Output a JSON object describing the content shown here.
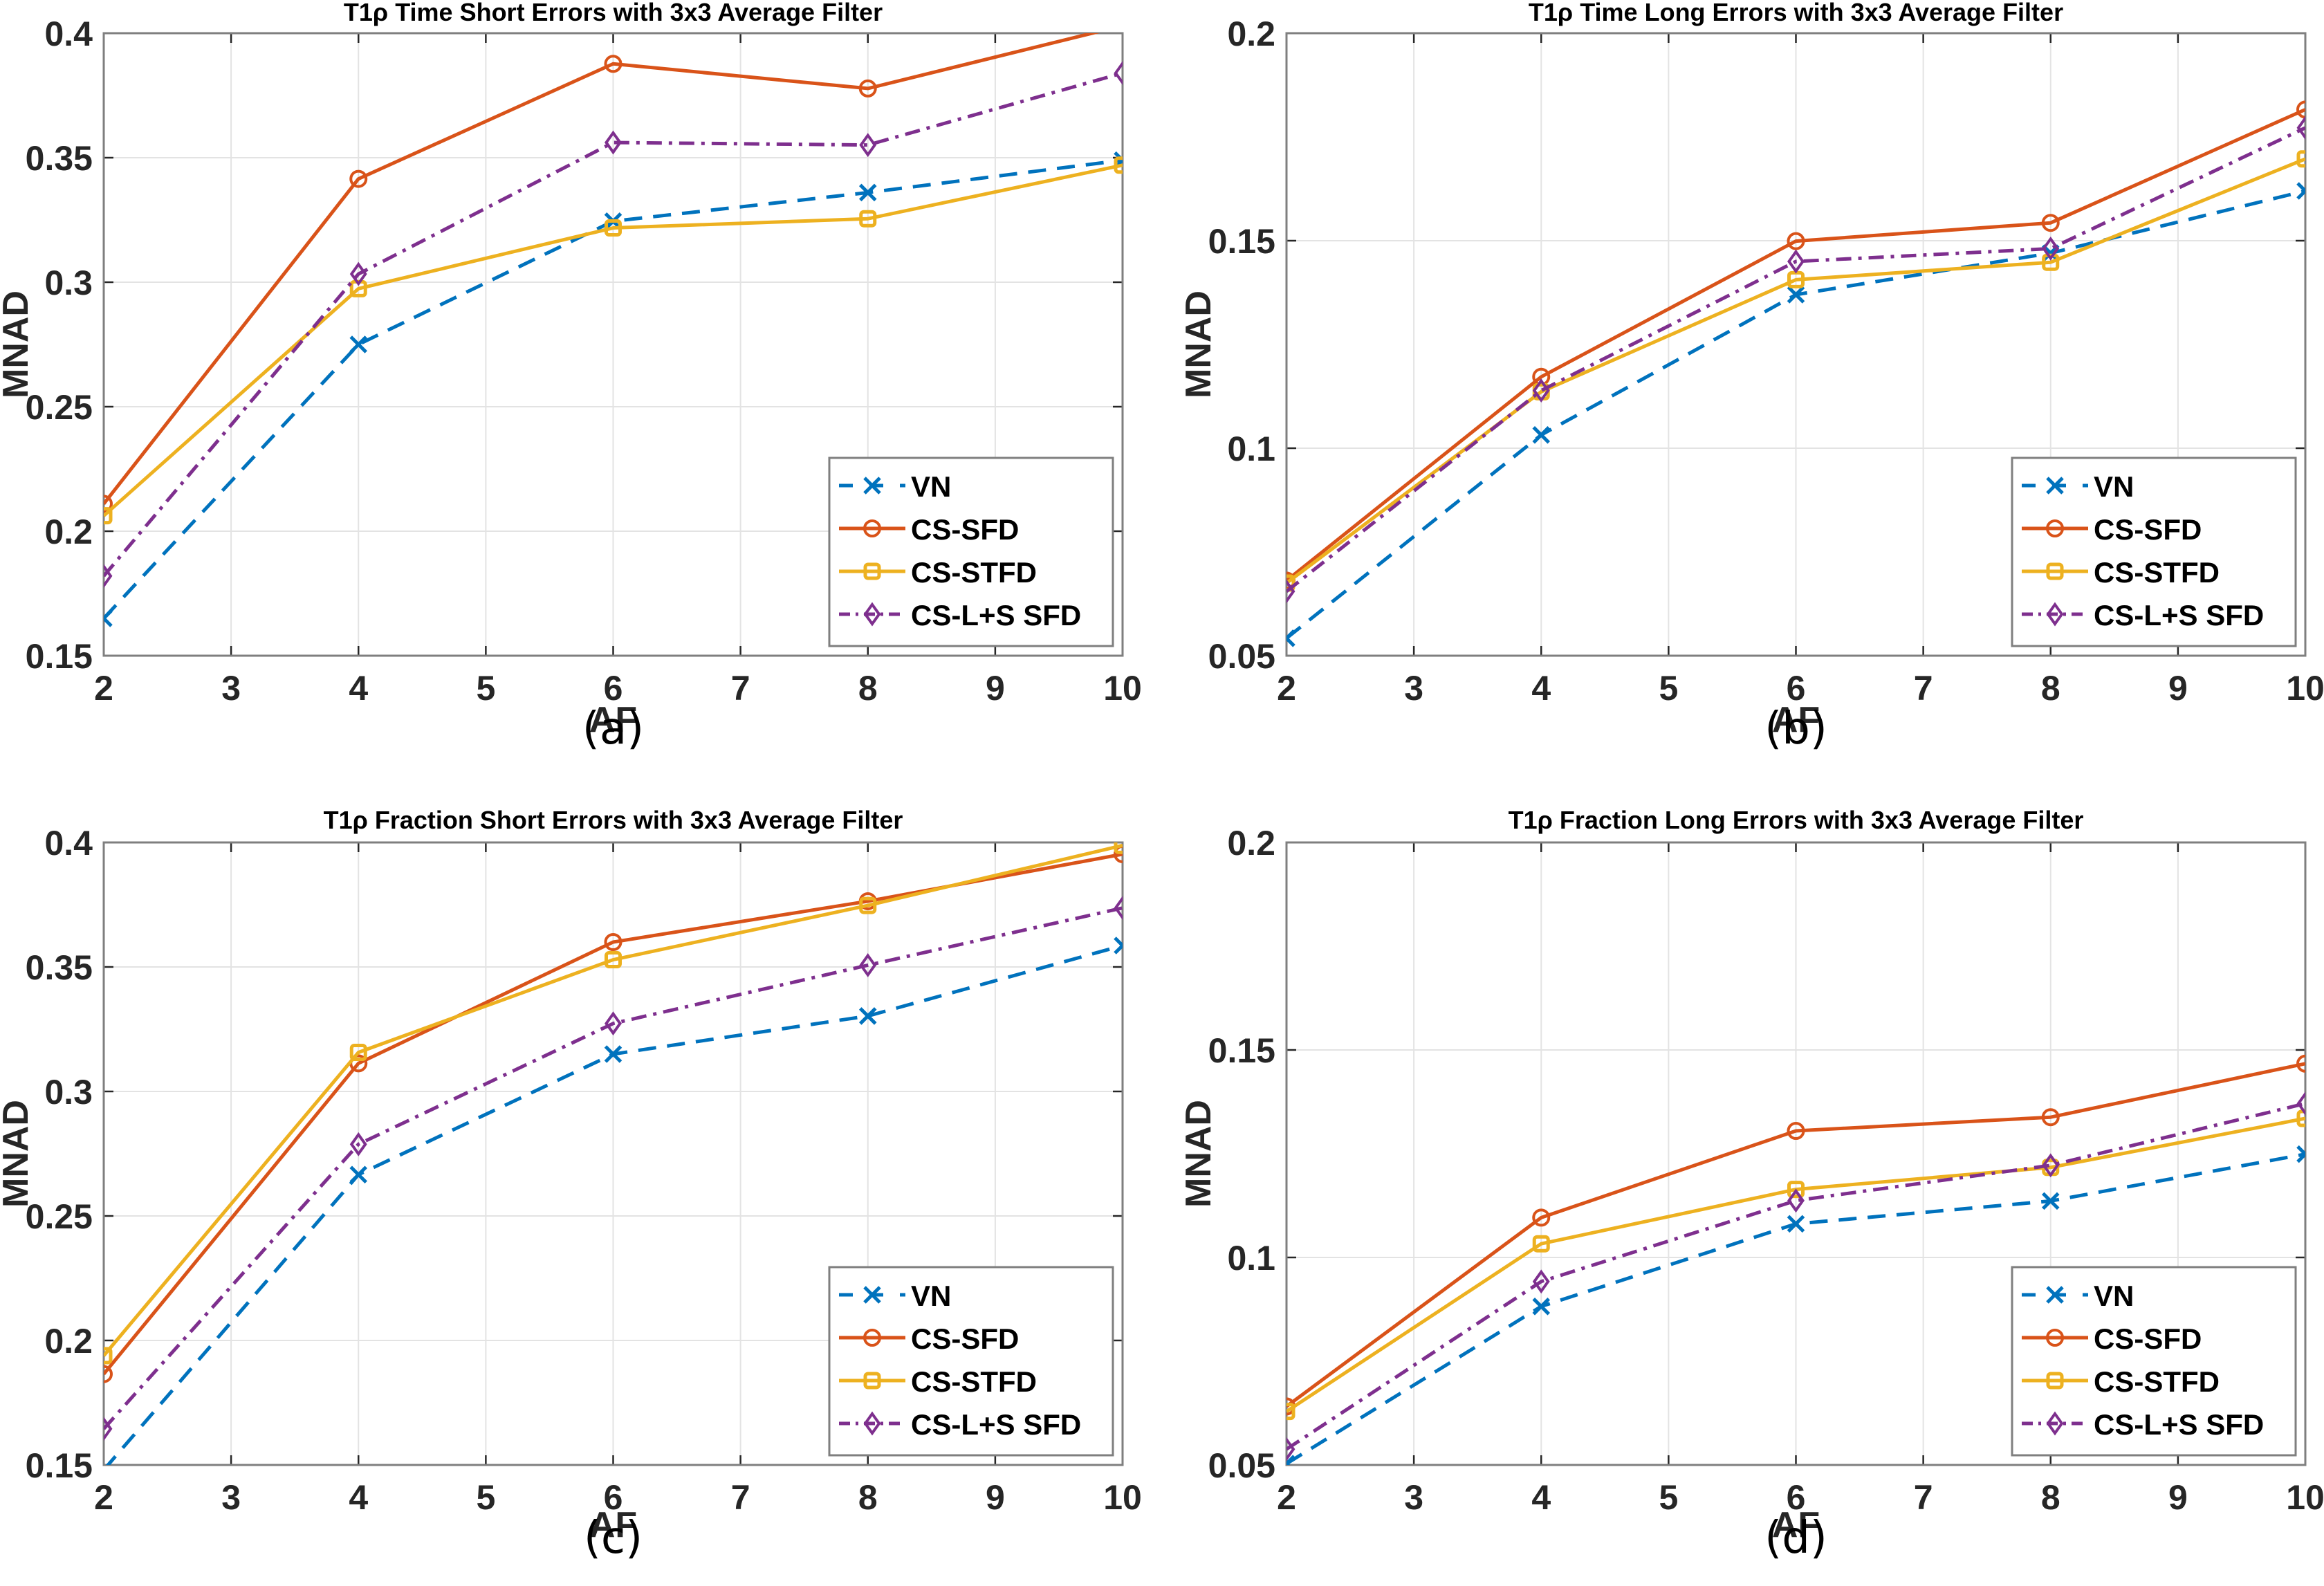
{
  "figure": {
    "panel_labels": [
      "(a)",
      "(b)",
      "(c)",
      "(d)"
    ]
  },
  "legend": [
    {
      "name": "VN",
      "color": "#0072BD",
      "dash": "dashed",
      "marker": "x"
    },
    {
      "name": "CS-SFD",
      "color": "#D95319",
      "dash": "solid",
      "marker": "circle"
    },
    {
      "name": "CS-STFD",
      "color": "#EDB120",
      "dash": "solid",
      "marker": "square"
    },
    {
      "name": "CS-L+S SFD",
      "color": "#7E2F8E",
      "dash": "dashdot",
      "marker": "diamond"
    }
  ],
  "chart_data": [
    {
      "type": "line",
      "panel": "(a)",
      "title": "T1ρ Time Short Errors with 3x3 Average Filter",
      "xlabel": "AF",
      "ylabel": "MNAD",
      "x": [
        2,
        4,
        6,
        8,
        10
      ],
      "xlim": [
        2,
        10
      ],
      "ylim": [
        0.15,
        0.4
      ],
      "xticks": [
        2,
        3,
        4,
        5,
        6,
        7,
        8,
        9,
        10
      ],
      "yticks": [
        0.15,
        0.2,
        0.25,
        0.3,
        0.35,
        0.4
      ],
      "ytick_labels": [
        "0.15",
        "0.2",
        "0.25",
        "0.3",
        "0.35",
        "0.4"
      ],
      "grid": true,
      "legend_position": "bottom-right",
      "series": [
        {
          "name": "VN",
          "values": [
            0.165,
            0.275,
            0.3245,
            0.336,
            0.349
          ]
        },
        {
          "name": "CS-SFD",
          "values": [
            0.211,
            0.3415,
            0.3877,
            0.3778,
            0.403
          ]
        },
        {
          "name": "CS-STFD",
          "values": [
            0.2062,
            0.2974,
            0.3218,
            0.3255,
            0.347
          ]
        },
        {
          "name": "CS-L+S SFD",
          "values": [
            0.182,
            0.3033,
            0.3561,
            0.3551,
            0.384
          ]
        }
      ]
    },
    {
      "type": "line",
      "panel": "(b)",
      "title": "T1ρ Time Long Errors with 3x3 Average Filter",
      "xlabel": "AF",
      "ylabel": "MNAD",
      "x": [
        2,
        4,
        6,
        8,
        10
      ],
      "xlim": [
        2,
        10
      ],
      "ylim": [
        0.05,
        0.2
      ],
      "xticks": [
        2,
        3,
        4,
        5,
        6,
        7,
        8,
        9,
        10
      ],
      "yticks": [
        0.05,
        0.1,
        0.15,
        0.2
      ],
      "ytick_labels": [
        "0.05",
        "0.1",
        "0.15",
        "0.2"
      ],
      "grid": true,
      "legend_position": "bottom-right",
      "series": [
        {
          "name": "VN",
          "values": [
            0.0542,
            0.1032,
            0.137,
            0.147,
            0.162
          ]
        },
        {
          "name": "CS-SFD",
          "values": [
            0.0681,
            0.1172,
            0.1499,
            0.1543,
            0.1816
          ]
        },
        {
          "name": "CS-STFD",
          "values": [
            0.0675,
            0.1136,
            0.1406,
            0.1448,
            0.1697
          ]
        },
        {
          "name": "CS-L+S SFD",
          "values": [
            0.0655,
            0.1139,
            0.145,
            0.1481,
            0.1772
          ]
        }
      ]
    },
    {
      "type": "line",
      "panel": "(c)",
      "title": "T1ρ Fraction Short Errors with 3x3 Average Filter",
      "xlabel": "AF",
      "ylabel": "MNAD",
      "x": [
        2,
        4,
        6,
        8,
        10
      ],
      "xlim": [
        2,
        10
      ],
      "ylim": [
        0.15,
        0.4
      ],
      "xticks": [
        2,
        3,
        4,
        5,
        6,
        7,
        8,
        9,
        10
      ],
      "yticks": [
        0.15,
        0.2,
        0.25,
        0.3,
        0.35,
        0.4
      ],
      "ytick_labels": [
        "0.15",
        "0.2",
        "0.25",
        "0.3",
        "0.35",
        "0.4"
      ],
      "grid": true,
      "legend_position": "bottom-right",
      "series": [
        {
          "name": "VN",
          "values": [
            0.148,
            0.2666,
            0.315,
            0.3303,
            0.3586
          ]
        },
        {
          "name": "CS-SFD",
          "values": [
            0.1865,
            0.3113,
            0.36,
            0.3764,
            0.3953
          ]
        },
        {
          "name": "CS-STFD",
          "values": [
            0.1939,
            0.3157,
            0.3529,
            0.3747,
            0.3988
          ]
        },
        {
          "name": "CS-L+S SFD",
          "values": [
            0.1645,
            0.2788,
            0.3273,
            0.3507,
            0.3737
          ]
        }
      ]
    },
    {
      "type": "line",
      "panel": "(d)",
      "title": "T1ρ Fraction Long Errors with 3x3 Average Filter",
      "xlabel": "AF",
      "ylabel": "MNAD",
      "x": [
        2,
        4,
        6,
        8,
        10
      ],
      "xlim": [
        2,
        10
      ],
      "ylim": [
        0.05,
        0.2
      ],
      "xticks": [
        2,
        3,
        4,
        5,
        6,
        7,
        8,
        9,
        10
      ],
      "yticks": [
        0.05,
        0.1,
        0.15,
        0.2
      ],
      "ytick_labels": [
        "0.05",
        "0.1",
        "0.15",
        "0.2"
      ],
      "grid": true,
      "legend_position": "bottom-right",
      "series": [
        {
          "name": "VN",
          "values": [
            0.0503,
            0.0882,
            0.1081,
            0.1136,
            0.1249
          ]
        },
        {
          "name": "CS-SFD",
          "values": [
            0.0641,
            0.1096,
            0.1305,
            0.1338,
            0.1467
          ]
        },
        {
          "name": "CS-STFD",
          "values": [
            0.0629,
            0.1033,
            0.1164,
            0.1217,
            0.1335
          ]
        },
        {
          "name": "CS-L+S SFD",
          "values": [
            0.0538,
            0.0942,
            0.1137,
            0.1222,
            0.1371
          ]
        }
      ]
    }
  ]
}
